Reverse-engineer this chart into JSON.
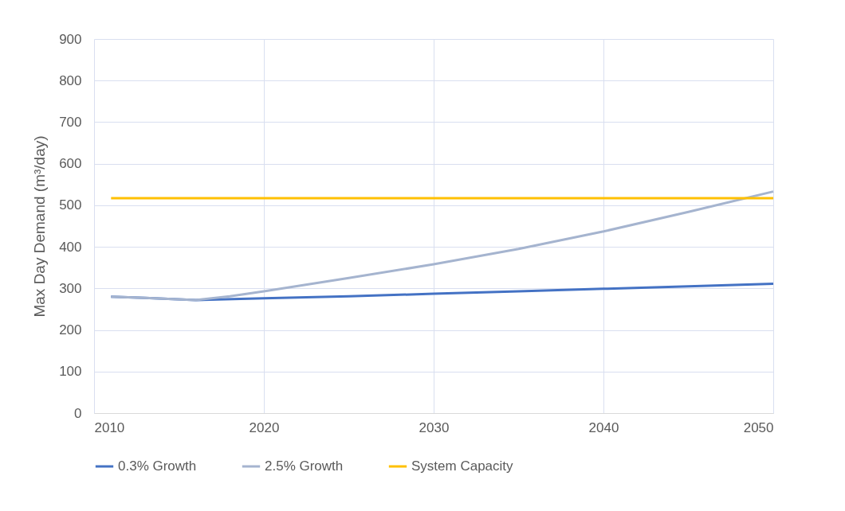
{
  "chart_data": {
    "type": "line",
    "ylabel": "Max Day  Demand (m³/day)",
    "xlim": [
      2010,
      2050
    ],
    "xticks": [
      2010,
      2020,
      2030,
      2040,
      2050
    ],
    "ylim": [
      0,
      900
    ],
    "yticks": [
      0,
      100,
      200,
      300,
      400,
      500,
      600,
      700,
      800,
      900
    ],
    "grid": true,
    "legend": "bottom",
    "line_style": "solid",
    "marker": "none",
    "series": [
      {
        "name": "0.3% Growth",
        "color": "#4472c4",
        "x": [
          2011,
          2013,
          2016,
          2020,
          2025,
          2030,
          2035,
          2040,
          2045,
          2050
        ],
        "values": [
          280,
          277,
          272,
          276,
          281,
          287,
          293,
          299,
          305,
          311
        ]
      },
      {
        "name": "2.5% Growth",
        "color": "#a5b4cf",
        "x": [
          2011,
          2013,
          2016,
          2018,
          2020,
          2025,
          2030,
          2035,
          2040,
          2045,
          2050
        ],
        "values": [
          280,
          277,
          272,
          281,
          293,
          325,
          358,
          395,
          437,
          484,
          533
        ]
      },
      {
        "name": "System Capacity",
        "color": "#ffc000",
        "x": [
          2011,
          2050
        ],
        "values": [
          517,
          517
        ]
      }
    ]
  }
}
